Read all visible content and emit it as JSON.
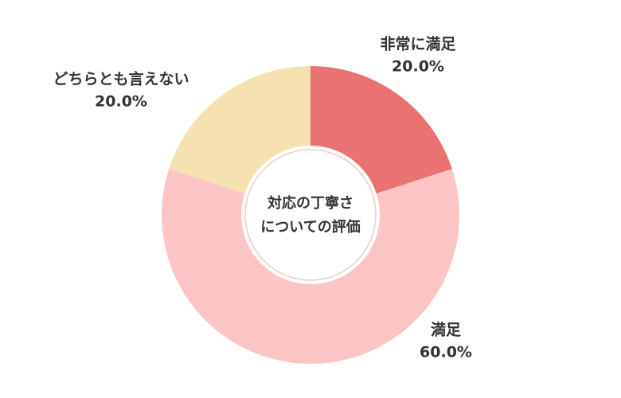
{
  "chart_data": {
    "type": "donut",
    "title": [
      "対応の丁寧さ",
      "についての評価"
    ],
    "categories": [
      "非常に満足",
      "満足",
      "どちらとも言えない"
    ],
    "values": [
      20,
      60,
      20
    ],
    "value_labels": [
      "20.0%",
      "60.0%",
      "20.0%"
    ],
    "colors": [
      "#eb7272",
      "#fcc5c5",
      "#f5e1b2"
    ]
  }
}
